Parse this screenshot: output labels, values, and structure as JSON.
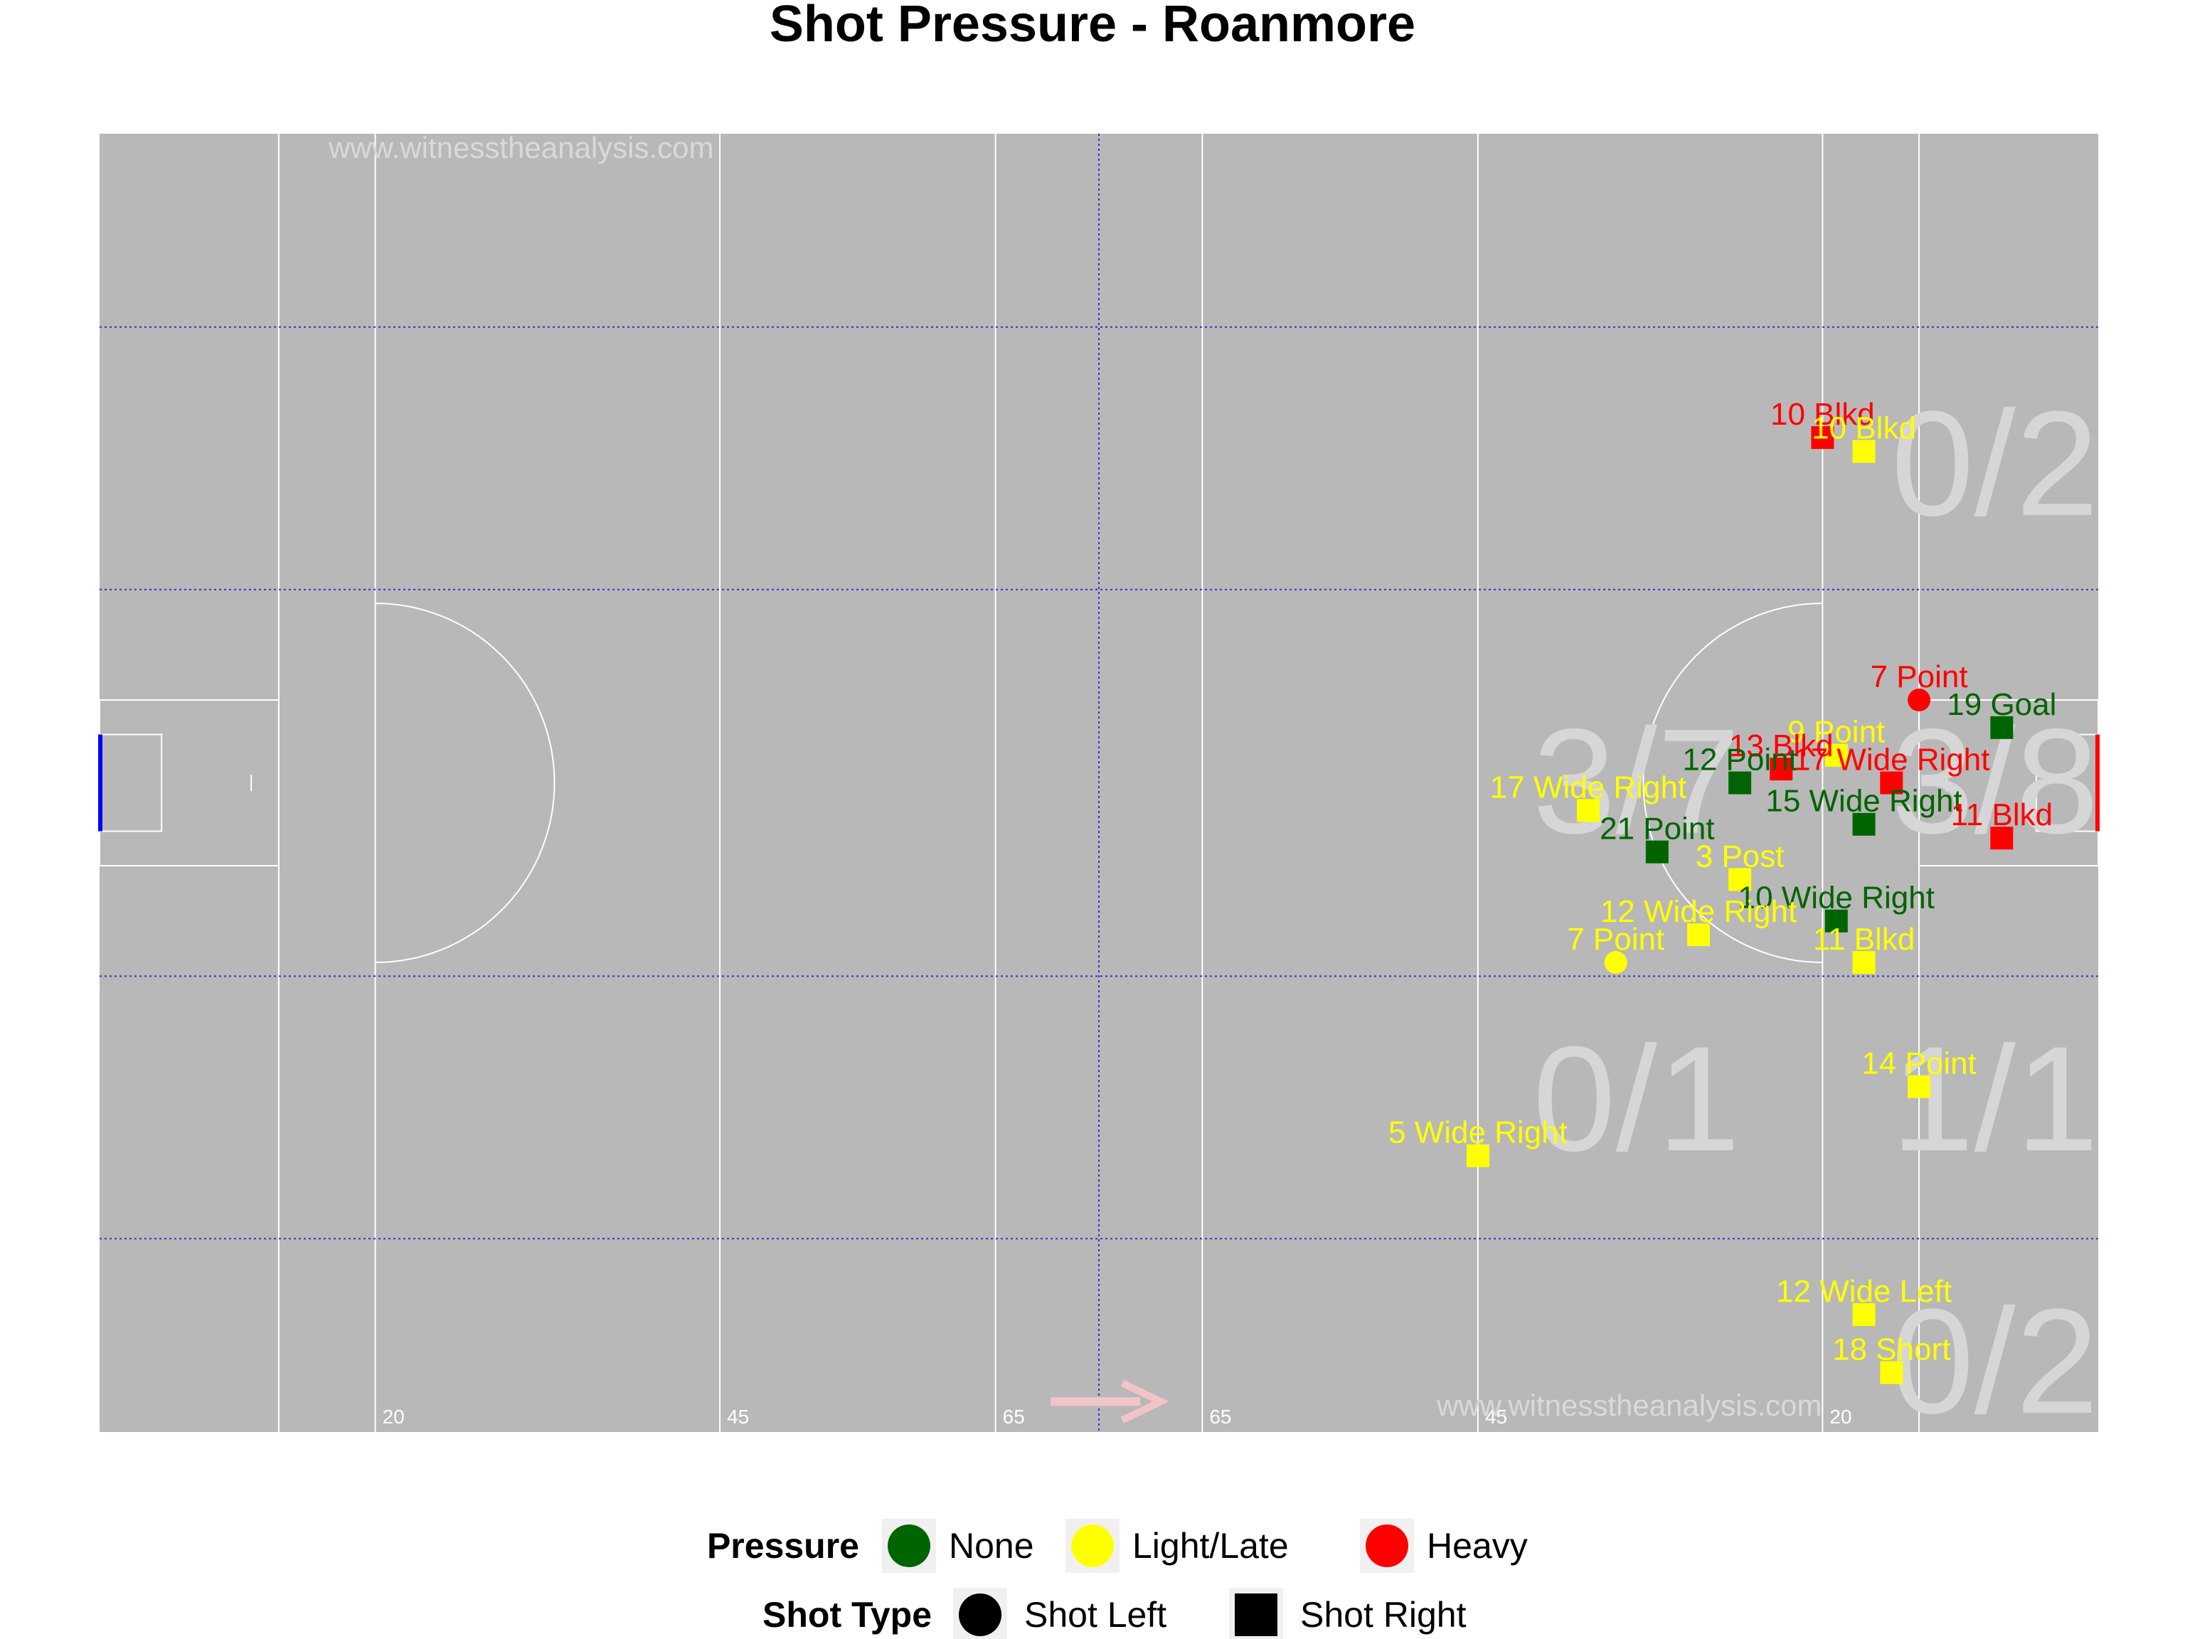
{
  "chart_data": {
    "type": "scatter",
    "title": "Shot Pressure - Roanmore",
    "watermarks": [
      "www.witnesstheanalysis.com",
      "www.witnesstheanalysis.com"
    ],
    "xlim": [
      0,
      145
    ],
    "ylim": [
      0,
      94
    ],
    "distance_marks": [
      {
        "x": 20,
        "label": "20"
      },
      {
        "x": 45,
        "label": "45"
      },
      {
        "x": 65,
        "label": "65"
      },
      {
        "x": 80,
        "label": "65"
      },
      {
        "x": 100,
        "label": "45"
      },
      {
        "x": 125,
        "label": "20"
      }
    ],
    "pressure_colors": {
      "None": "#006400",
      "Light/Late": "#FFFF00",
      "Heavy": "#FF0000"
    },
    "zone_labels": [
      {
        "text": "0/2",
        "x": 137.5,
        "y": 70
      },
      {
        "text": "3/7",
        "x": 111.5,
        "y": 47
      },
      {
        "text": "3/8",
        "x": 137.5,
        "y": 47
      },
      {
        "text": "0/1",
        "x": 111.5,
        "y": 24
      },
      {
        "text": "1/1",
        "x": 137.5,
        "y": 24
      },
      {
        "text": "0/2",
        "x": 137.5,
        "y": 5
      }
    ],
    "shots": [
      {
        "label": "10 Blkd",
        "x": 125,
        "y": 72,
        "pressure": "Heavy",
        "type": "Shot Right"
      },
      {
        "label": "10 Blkd",
        "x": 128,
        "y": 71,
        "pressure": "Light/Late",
        "type": "Shot Right"
      },
      {
        "label": "7 Point",
        "x": 132,
        "y": 53,
        "pressure": "Heavy",
        "type": "Shot Left"
      },
      {
        "label": "19 Goal",
        "x": 138,
        "y": 51,
        "pressure": "None",
        "type": "Shot Right"
      },
      {
        "label": "9 Point",
        "x": 126,
        "y": 49,
        "pressure": "Light/Late",
        "type": "Shot Right"
      },
      {
        "label": "13 Blkd",
        "x": 122,
        "y": 48,
        "pressure": "Heavy",
        "type": "Shot Right"
      },
      {
        "label": "12 Point",
        "x": 119,
        "y": 47,
        "pressure": "None",
        "type": "Shot Right"
      },
      {
        "label": "17 Wide Right",
        "x": 130,
        "y": 47,
        "pressure": "Heavy",
        "type": "Shot Right"
      },
      {
        "label": "17 Wide Right",
        "x": 108,
        "y": 45,
        "pressure": "Light/Late",
        "type": "Shot Right"
      },
      {
        "label": "15 Wide Right",
        "x": 128,
        "y": 44,
        "pressure": "None",
        "type": "Shot Right"
      },
      {
        "label": "21 Point",
        "x": 113,
        "y": 42,
        "pressure": "None",
        "type": "Shot Right"
      },
      {
        "label": "11 Blkd",
        "x": 138,
        "y": 43,
        "pressure": "Heavy",
        "type": "Shot Right"
      },
      {
        "label": "3 Post",
        "x": 119,
        "y": 40,
        "pressure": "Light/Late",
        "type": "Shot Right"
      },
      {
        "label": "10 Wide Right",
        "x": 126,
        "y": 37,
        "pressure": "None",
        "type": "Shot Right"
      },
      {
        "label": "12 Wide Right",
        "x": 116,
        "y": 36,
        "pressure": "Light/Late",
        "type": "Shot Right"
      },
      {
        "label": "7 Point",
        "x": 110,
        "y": 34,
        "pressure": "Light/Late",
        "type": "Shot Left"
      },
      {
        "label": "11 Blkd",
        "x": 128,
        "y": 34,
        "pressure": "Light/Late",
        "type": "Shot Right"
      },
      {
        "label": "14 Point",
        "x": 132,
        "y": 25,
        "pressure": "Light/Late",
        "type": "Shot Right"
      },
      {
        "label": "5 Wide Right",
        "x": 100,
        "y": 20,
        "pressure": "Light/Late",
        "type": "Shot Right"
      },
      {
        "label": "12 Wide Left",
        "x": 128,
        "y": 8.5,
        "pressure": "Light/Late",
        "type": "Shot Right"
      },
      {
        "label": "18 Short",
        "x": 130,
        "y": 4.3,
        "pressure": "Light/Late",
        "type": "Shot Right"
      }
    ],
    "legend": {
      "pressure_title": "Pressure",
      "pressure_items": [
        {
          "label": "None",
          "color": "#006400"
        },
        {
          "label": "Light/Late",
          "color": "#FFFF00"
        },
        {
          "label": "Heavy",
          "color": "#FF0000"
        }
      ],
      "type_title": "Shot Type",
      "type_items": [
        {
          "label": "Shot Left",
          "shape": "circle"
        },
        {
          "label": "Shot Right",
          "shape": "square"
        }
      ],
      "placement": "bottom"
    }
  }
}
